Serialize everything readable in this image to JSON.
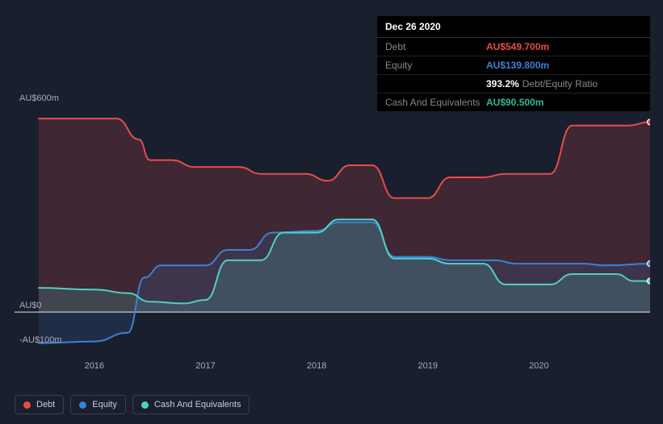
{
  "chart": {
    "type": "area",
    "background_color": "#1a1f2e",
    "plot_background": "#1a1f2e",
    "axis_line_color": "#ffffff",
    "label_color": "#a0a8b8",
    "label_fontsize": 11,
    "y_axis": {
      "min": -100,
      "max": 600,
      "ticks": [
        {
          "value": 600,
          "label": "AU$600m"
        },
        {
          "value": 0,
          "label": "AU$0"
        },
        {
          "value": -100,
          "label": "-AU$100m"
        }
      ]
    },
    "x_axis": {
      "min": 2015.5,
      "max": 2021.0,
      "ticks": [
        {
          "value": 2016,
          "label": "2016"
        },
        {
          "value": 2017,
          "label": "2017"
        },
        {
          "value": 2018,
          "label": "2018"
        },
        {
          "value": 2019,
          "label": "2019"
        },
        {
          "value": 2020,
          "label": "2020"
        }
      ]
    },
    "series": [
      {
        "key": "debt",
        "name": "Debt",
        "stroke": "#e74c4c",
        "fill": "#e74c4c",
        "fill_opacity": 0.18,
        "stroke_width": 2,
        "data": [
          [
            2015.5,
            560
          ],
          [
            2016.2,
            560
          ],
          [
            2016.4,
            500
          ],
          [
            2016.5,
            440
          ],
          [
            2016.7,
            440
          ],
          [
            2016.9,
            420
          ],
          [
            2017.3,
            420
          ],
          [
            2017.5,
            400
          ],
          [
            2017.9,
            400
          ],
          [
            2018.1,
            380
          ],
          [
            2018.3,
            425
          ],
          [
            2018.5,
            425
          ],
          [
            2018.7,
            330
          ],
          [
            2019.0,
            330
          ],
          [
            2019.2,
            390
          ],
          [
            2019.5,
            390
          ],
          [
            2019.7,
            400
          ],
          [
            2020.1,
            400
          ],
          [
            2020.3,
            540
          ],
          [
            2020.8,
            540
          ],
          [
            2021.0,
            550
          ]
        ]
      },
      {
        "key": "equity",
        "name": "Equity",
        "stroke": "#3b82d6",
        "fill": "#3b82d6",
        "fill_opacity": 0.15,
        "stroke_width": 2,
        "data": [
          [
            2015.5,
            -90
          ],
          [
            2016.0,
            -85
          ],
          [
            2016.3,
            -60
          ],
          [
            2016.45,
            100
          ],
          [
            2016.6,
            135
          ],
          [
            2017.0,
            135
          ],
          [
            2017.2,
            180
          ],
          [
            2017.4,
            180
          ],
          [
            2017.6,
            230
          ],
          [
            2018.0,
            235
          ],
          [
            2018.2,
            260
          ],
          [
            2018.5,
            260
          ],
          [
            2018.7,
            160
          ],
          [
            2019.0,
            160
          ],
          [
            2019.2,
            150
          ],
          [
            2019.6,
            150
          ],
          [
            2019.8,
            140
          ],
          [
            2020.4,
            140
          ],
          [
            2020.6,
            135
          ],
          [
            2021.0,
            140
          ]
        ]
      },
      {
        "key": "cash",
        "name": "Cash And Equivalents",
        "stroke": "#4fd1c5",
        "fill": "#4fd1c5",
        "fill_opacity": 0.18,
        "stroke_width": 2,
        "data": [
          [
            2015.5,
            70
          ],
          [
            2016.0,
            65
          ],
          [
            2016.3,
            55
          ],
          [
            2016.5,
            30
          ],
          [
            2016.8,
            25
          ],
          [
            2017.0,
            35
          ],
          [
            2017.2,
            150
          ],
          [
            2017.5,
            150
          ],
          [
            2017.7,
            230
          ],
          [
            2018.0,
            230
          ],
          [
            2018.2,
            268
          ],
          [
            2018.5,
            268
          ],
          [
            2018.7,
            155
          ],
          [
            2019.0,
            155
          ],
          [
            2019.2,
            140
          ],
          [
            2019.5,
            140
          ],
          [
            2019.7,
            80
          ],
          [
            2020.1,
            80
          ],
          [
            2020.3,
            110
          ],
          [
            2020.7,
            110
          ],
          [
            2020.85,
            90
          ],
          [
            2021.0,
            90
          ]
        ]
      }
    ]
  },
  "tooltip": {
    "date": "Dec 26 2020",
    "rows": [
      {
        "label": "Debt",
        "value": "AU$549.700m",
        "color": "#e74c4c"
      },
      {
        "label": "Equity",
        "value": "AU$139.800m",
        "color": "#3b82d6"
      }
    ],
    "ratio": {
      "value": "393.2%",
      "label": "Debt/Equity Ratio"
    },
    "cash_row": {
      "label": "Cash And Equivalents",
      "value": "AU$90.500m",
      "color": "#2fb89a"
    }
  },
  "legend": [
    {
      "label": "Debt",
      "color": "#e74c4c"
    },
    {
      "label": "Equity",
      "color": "#3b82d6"
    },
    {
      "label": "Cash And Equivalents",
      "color": "#4fd1c5"
    }
  ]
}
